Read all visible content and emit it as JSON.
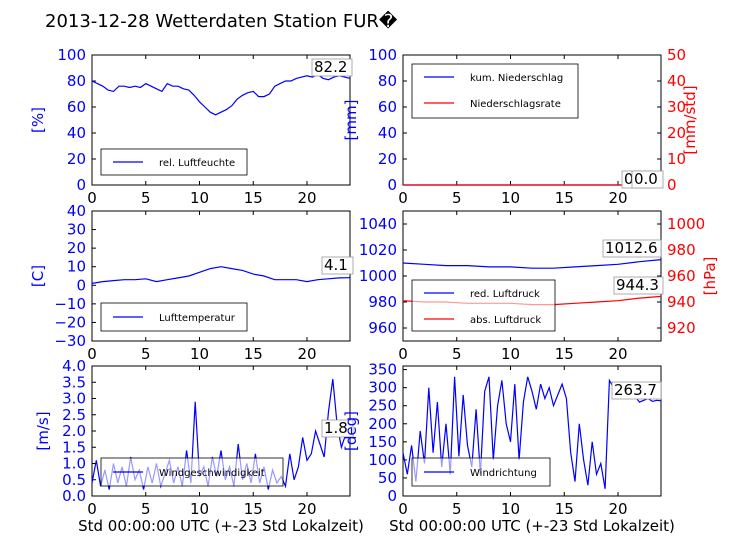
{
  "title": "2013-12-28 Wetterdaten Station FUR�",
  "colors": {
    "primary": "#0000ff",
    "secondary": "#ff0000",
    "axis": "#000000"
  },
  "chart_data": [
    {
      "id": "humidity",
      "type": "line",
      "x_ticks": [
        "0",
        "5",
        "10",
        "15",
        "20"
      ],
      "xlim": [
        0,
        24
      ],
      "ylim": [
        0,
        100
      ],
      "y_ticks": [
        "0",
        "20",
        "40",
        "60",
        "80",
        "100"
      ],
      "ylabel": "[%]",
      "legend_placement": "lower-left",
      "series": [
        {
          "name": "rel. Luftfeuchte",
          "color": "#0000ff",
          "x": [
            0,
            0.5,
            1,
            1.5,
            2,
            2.5,
            3,
            3.5,
            4,
            4.5,
            5,
            5.5,
            6,
            6.5,
            7,
            7.5,
            8,
            8.5,
            9,
            9.5,
            10,
            10.5,
            11,
            11.5,
            12,
            12.5,
            13,
            13.5,
            14,
            14.5,
            15,
            15.5,
            16,
            16.5,
            17,
            17.5,
            18,
            18.5,
            19,
            19.5,
            20,
            20.5,
            21,
            21.5,
            22,
            22.5,
            23,
            23.5,
            24
          ],
          "y": [
            80,
            78,
            76,
            73,
            72,
            76,
            76,
            75,
            76,
            75,
            78,
            76,
            74,
            72,
            78,
            76,
            76,
            74,
            73,
            69,
            64,
            60,
            56,
            54,
            56,
            58,
            61,
            66,
            69,
            71,
            72,
            68,
            68,
            70,
            76,
            78,
            80,
            80,
            82,
            83,
            84,
            83,
            85,
            82,
            81,
            83,
            84,
            83,
            82
          ]
        }
      ],
      "last_value_label": "82.2"
    },
    {
      "id": "precipitation",
      "type": "line",
      "x_ticks": [
        "0",
        "5",
        "10",
        "15",
        "20"
      ],
      "xlim": [
        0,
        24
      ],
      "ylim": [
        0,
        100
      ],
      "y_ticks": [
        "0",
        "20",
        "40",
        "60",
        "80",
        "100"
      ],
      "ylabel": "[mm]",
      "y2lim": [
        0,
        50
      ],
      "y2_ticks": [
        "0",
        "10",
        "20",
        "30",
        "40",
        "50"
      ],
      "y2label": "[mm/std]",
      "legend_placement": "upper-left",
      "series": [
        {
          "name": "kum. Niederschlag",
          "color": "#0000ff",
          "x": [
            0,
            24
          ],
          "y": [
            0,
            0
          ]
        },
        {
          "name": "Niederschlagsrate",
          "color": "#ff0000",
          "x": [
            0,
            24
          ],
          "y": [
            0,
            0
          ]
        }
      ],
      "last_value_labels": [
        "0.0",
        "0.0"
      ]
    },
    {
      "id": "temperature",
      "type": "line",
      "x_ticks": [
        "0",
        "5",
        "10",
        "15",
        "20"
      ],
      "xlim": [
        0,
        24
      ],
      "ylim": [
        -30,
        40
      ],
      "y_ticks": [
        "−30",
        "−20",
        "−10",
        "0",
        "10",
        "20",
        "30",
        "40"
      ],
      "ylabel": "[C]",
      "legend_placement": "lower-left",
      "series": [
        {
          "name": "Lufttemperatur",
          "color": "#0000ff",
          "x": [
            0,
            1,
            2,
            3,
            4,
            5,
            6,
            7,
            8,
            9,
            10,
            11,
            12,
            13,
            14,
            15,
            16,
            17,
            18,
            19,
            20,
            21,
            22,
            23,
            24
          ],
          "y": [
            1,
            2,
            2.5,
            3,
            3,
            3.5,
            2,
            3,
            4,
            5,
            7,
            9,
            10,
            9,
            8,
            6,
            5,
            3,
            3,
            3,
            2,
            3,
            3.5,
            4,
            4.1
          ]
        }
      ],
      "last_value_label": "4.1"
    },
    {
      "id": "pressure",
      "type": "line",
      "x_ticks": [
        "0",
        "5",
        "10",
        "15",
        "20"
      ],
      "xlim": [
        0,
        24
      ],
      "ylim": [
        950,
        1050
      ],
      "y_ticks": [
        "960",
        "980",
        "1000",
        "1020",
        "1040"
      ],
      "y2lim": [
        910,
        1010
      ],
      "y2_ticks": [
        "920",
        "940",
        "960",
        "980",
        "1000"
      ],
      "y2label": "[hPa]",
      "legend_placement": "lower-left",
      "series": [
        {
          "name": "red. Luftdruck",
          "color": "#0000ff",
          "x": [
            0,
            2,
            4,
            6,
            8,
            10,
            12,
            14,
            16,
            18,
            20,
            22,
            24
          ],
          "y": [
            1010,
            1009,
            1008,
            1008,
            1007,
            1007,
            1006,
            1006,
            1007,
            1008,
            1009,
            1011,
            1012.6
          ]
        },
        {
          "name": "abs. Luftdruck",
          "color": "#ff0000",
          "axis": "y2",
          "x": [
            0,
            2,
            4,
            6,
            8,
            10,
            12,
            14,
            16,
            18,
            20,
            22,
            24
          ],
          "y": [
            941,
            940,
            940,
            939,
            939,
            939,
            938,
            938,
            939,
            940,
            941,
            943,
            944.3
          ]
        }
      ],
      "last_value_labels": [
        "1012.6",
        "944.3"
      ]
    },
    {
      "id": "windspeed",
      "type": "line",
      "x_ticks": [
        "0",
        "5",
        "10",
        "15",
        "20"
      ],
      "xlim": [
        0,
        24
      ],
      "ylim": [
        0,
        4
      ],
      "y_ticks": [
        "0.0",
        "0.5",
        "1.0",
        "1.5",
        "2.0",
        "2.5",
        "3.0",
        "3.5",
        "4.0"
      ],
      "ylabel": "[m/s]",
      "legend_placement": "lower-left",
      "xlabel": "Std 00:00:00 UTC (+-23 Std Lokalzeit)",
      "series": [
        {
          "name": "Windgeschwindigkeit",
          "color": "#0000ff",
          "x": [
            0,
            0.4,
            0.8,
            1.2,
            1.6,
            2,
            2.4,
            2.8,
            3.2,
            3.6,
            4,
            4.4,
            4.8,
            5.2,
            5.6,
            6,
            6.4,
            6.8,
            7.2,
            7.6,
            8,
            8.4,
            8.8,
            9.2,
            9.6,
            10,
            10.4,
            10.8,
            11.2,
            11.6,
            12,
            12.4,
            12.8,
            13.2,
            13.6,
            14,
            14.4,
            14.8,
            15.2,
            15.6,
            16,
            16.4,
            16.8,
            17.2,
            17.6,
            18,
            18.4,
            18.8,
            19.2,
            19.6,
            20,
            20.4,
            20.8,
            21.2,
            21.6,
            22,
            22.4,
            22.8,
            23.2,
            23.6,
            24
          ],
          "y": [
            0.4,
            1.1,
            0.3,
            0.8,
            0.2,
            1.0,
            0.4,
            0.9,
            0.3,
            1.2,
            0.5,
            0.8,
            0.2,
            0.9,
            0.4,
            1.0,
            0.3,
            0.7,
            1.1,
            0.4,
            0.9,
            0.3,
            1.4,
            0.4,
            2.9,
            0.6,
            0.9,
            0.3,
            1.2,
            0.6,
            1.4,
            0.5,
            0.9,
            0.3,
            1.6,
            0.5,
            1.0,
            0.4,
            1.3,
            0.4,
            0.9,
            0.2,
            0.8,
            0.4,
            0.6,
            0.3,
            1.3,
            0.5,
            0.9,
            1.8,
            1.1,
            1.3,
            2.0,
            1.6,
            1.2,
            2.6,
            3.6,
            2.2,
            1.5,
            1.9,
            1.8
          ]
        }
      ],
      "last_value_label": "1.8"
    },
    {
      "id": "winddir",
      "type": "line",
      "x_ticks": [
        "0",
        "5",
        "10",
        "15",
        "20"
      ],
      "xlim": [
        0,
        24
      ],
      "ylim": [
        0,
        360
      ],
      "y_ticks": [
        "0",
        "50",
        "100",
        "150",
        "200",
        "250",
        "300",
        "350"
      ],
      "ylabel": "[deg]",
      "legend_placement": "lower-left",
      "xlabel": "Std 00:00:00 UTC (+-23 Std Lokalzeit)",
      "series": [
        {
          "name": "Windrichtung",
          "color": "#0000ff",
          "x": [
            0,
            0.4,
            0.8,
            1.2,
            1.6,
            2,
            2.4,
            2.8,
            3.2,
            3.6,
            4,
            4.4,
            4.8,
            5.2,
            5.6,
            6,
            6.4,
            6.8,
            7.2,
            7.6,
            8,
            8.4,
            8.8,
            9.2,
            9.6,
            10,
            10.4,
            10.8,
            11.2,
            11.6,
            12,
            12.4,
            12.8,
            13.2,
            13.6,
            14,
            14.4,
            14.8,
            15.2,
            15.6,
            16,
            16.4,
            16.8,
            17.2,
            17.6,
            18,
            18.4,
            18.8,
            19.2,
            19.6,
            20,
            20.4,
            20.8,
            21.2,
            21.6,
            22,
            22.4,
            22.8,
            23.2,
            23.6,
            24
          ],
          "y": [
            120,
            60,
            140,
            40,
            180,
            90,
            300,
            120,
            260,
            80,
            200,
            60,
            330,
            110,
            280,
            140,
            80,
            240,
            60,
            290,
            330,
            100,
            250,
            320,
            200,
            150,
            310,
            100,
            260,
            330,
            290,
            240,
            310,
            270,
            300,
            250,
            280,
            310,
            270,
            120,
            40,
            200,
            100,
            30,
            150,
            60,
            90,
            20,
            320,
            300,
            270,
            280,
            290,
            270,
            275,
            260,
            265,
            270,
            262,
            265,
            263.7
          ]
        }
      ],
      "last_value_label": "263.7"
    }
  ]
}
